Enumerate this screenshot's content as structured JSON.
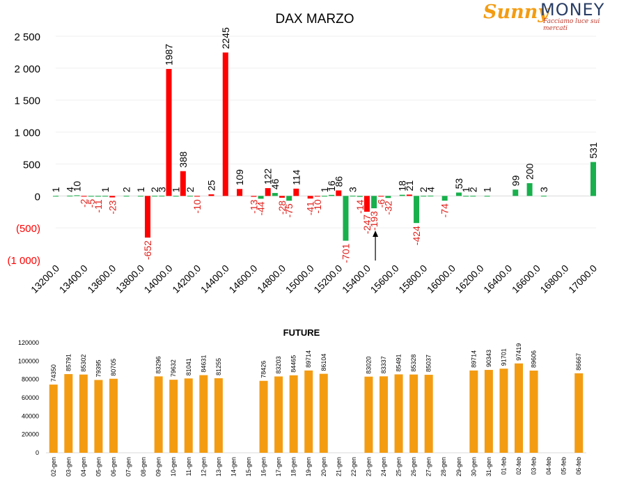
{
  "logo": {
    "brand_a": "Sunny",
    "brand_b": "MONEY",
    "tagline": "Facciamo luce sui mercati"
  },
  "colors": {
    "positive": "#18b04c",
    "negative": "#ff0000",
    "future_bar": "#f39c12",
    "axis_text": "#000000",
    "negative_label": "#e0201b"
  },
  "chart_data": [
    {
      "type": "bar",
      "title": "DAX MARZO",
      "xlabel": "",
      "ylabel": "",
      "ylim": [
        -1000,
        2500
      ],
      "y_ticks": [
        {
          "value": 2500,
          "label": "2 500"
        },
        {
          "value": 2000,
          "label": "2 000"
        },
        {
          "value": 1500,
          "label": "1 500"
        },
        {
          "value": 1000,
          "label": "1 000"
        },
        {
          "value": 500,
          "label": "500"
        },
        {
          "value": 0,
          "label": "0"
        },
        {
          "value": -500,
          "label": "(500)"
        },
        {
          "value": -1000,
          "label": "(1 000)"
        }
      ],
      "x_range": [
        13200,
        17000
      ],
      "x_ticks": [
        "13200.0",
        "13400.0",
        "13600.0",
        "13800.0",
        "14000.0",
        "14200.0",
        "14400.0",
        "14600.0",
        "14800.0",
        "15000.0",
        "15200.0",
        "15400.0",
        "15600.0",
        "15800.0",
        "16000.0",
        "16200.0",
        "16400.0",
        "16600.0",
        "16800.0",
        "17000.0"
      ],
      "grid": true,
      "annotation": "arrow pointing up at 15450 below the axis",
      "bars": [
        {
          "x": 13200,
          "value": 1,
          "color": "green"
        },
        {
          "x": 13300,
          "value": 4,
          "color": "green"
        },
        {
          "x": 13350,
          "value": 10,
          "color": "green"
        },
        {
          "x": 13400,
          "value": -2,
          "color": "red"
        },
        {
          "x": 13450,
          "value": -5,
          "color": "green"
        },
        {
          "x": 13500,
          "value": -11,
          "color": "green"
        },
        {
          "x": 13550,
          "value": 1,
          "color": "green"
        },
        {
          "x": 13600,
          "value": -23,
          "color": "red"
        },
        {
          "x": 13700,
          "value": 2,
          "color": "green"
        },
        {
          "x": 13800,
          "value": 1,
          "color": "green"
        },
        {
          "x": 13850,
          "value": -652,
          "color": "red"
        },
        {
          "x": 13900,
          "value": 2,
          "color": "green"
        },
        {
          "x": 13950,
          "value": 3,
          "color": "green"
        },
        {
          "x": 14000,
          "value": 1987,
          "color": "red"
        },
        {
          "x": 14050,
          "value": 1,
          "color": "green"
        },
        {
          "x": 14100,
          "value": 388,
          "color": "red"
        },
        {
          "x": 14150,
          "value": 2,
          "color": "green"
        },
        {
          "x": 14200,
          "value": -10,
          "color": "red"
        },
        {
          "x": 14300,
          "value": 25,
          "color": "red"
        },
        {
          "x": 14400,
          "value": 2245,
          "color": "red"
        },
        {
          "x": 14500,
          "value": 109,
          "color": "red"
        },
        {
          "x": 14600,
          "value": -13,
          "color": "red"
        },
        {
          "x": 14650,
          "value": -44,
          "color": "green"
        },
        {
          "x": 14700,
          "value": 122,
          "color": "red"
        },
        {
          "x": 14750,
          "value": 46,
          "color": "green"
        },
        {
          "x": 14800,
          "value": -28,
          "color": "red"
        },
        {
          "x": 14850,
          "value": -75,
          "color": "green"
        },
        {
          "x": 14900,
          "value": 114,
          "color": "red"
        },
        {
          "x": 15000,
          "value": -41,
          "color": "red"
        },
        {
          "x": 15050,
          "value": -10,
          "color": "red"
        },
        {
          "x": 15100,
          "value": 1,
          "color": "green"
        },
        {
          "x": 15150,
          "value": 16,
          "color": "green"
        },
        {
          "x": 15200,
          "value": 86,
          "color": "red"
        },
        {
          "x": 15250,
          "value": -701,
          "color": "green"
        },
        {
          "x": 15300,
          "value": 3,
          "color": "green"
        },
        {
          "x": 15350,
          "value": -14,
          "color": "green"
        },
        {
          "x": 15400,
          "value": -247,
          "color": "red"
        },
        {
          "x": 15450,
          "value": -193,
          "color": "green"
        },
        {
          "x": 15500,
          "value": -6,
          "color": "red"
        },
        {
          "x": 15550,
          "value": -32,
          "color": "green"
        },
        {
          "x": 15650,
          "value": 18,
          "color": "green"
        },
        {
          "x": 15700,
          "value": 21,
          "color": "red"
        },
        {
          "x": 15750,
          "value": -424,
          "color": "green"
        },
        {
          "x": 15800,
          "value": 2,
          "color": "green"
        },
        {
          "x": 15850,
          "value": 4,
          "color": "green"
        },
        {
          "x": 15950,
          "value": -74,
          "color": "green"
        },
        {
          "x": 16050,
          "value": 53,
          "color": "green"
        },
        {
          "x": 16100,
          "value": 1,
          "color": "green"
        },
        {
          "x": 16150,
          "value": 2,
          "color": "green"
        },
        {
          "x": 16250,
          "value": 1,
          "color": "green"
        },
        {
          "x": 16450,
          "value": 99,
          "color": "green"
        },
        {
          "x": 16550,
          "value": 200,
          "color": "green"
        },
        {
          "x": 16650,
          "value": 3,
          "color": "green"
        },
        {
          "x": 17000,
          "value": 531,
          "color": "green"
        }
      ]
    },
    {
      "type": "bar",
      "title": "FUTURE",
      "xlabel": "",
      "ylabel": "",
      "ylim": [
        0,
        120000
      ],
      "y_ticks": [
        "0",
        "20000",
        "40000",
        "60000",
        "80000",
        "100000",
        "120000"
      ],
      "categories": [
        "02-gen",
        "03-gen",
        "04-gen",
        "05-gen",
        "06-gen",
        "07-gen",
        "08-gen",
        "09-gen",
        "10-gen",
        "11-gen",
        "12-gen",
        "13-gen",
        "14-gen",
        "15-gen",
        "16-gen",
        "17-gen",
        "18-gen",
        "19-gen",
        "20-gen",
        "21-gen",
        "22-gen",
        "23-gen",
        "24-gen",
        "25-gen",
        "26-gen",
        "27-gen",
        "28-gen",
        "29-gen",
        "30-gen",
        "31-gen",
        "01-feb",
        "02-feb",
        "03-feb",
        "04-feb",
        "05-feb",
        "06-feb"
      ],
      "values": [
        74350,
        85791,
        85302,
        79395,
        80705,
        null,
        null,
        83296,
        79632,
        81041,
        84631,
        81255,
        null,
        null,
        78426,
        83203,
        84465,
        89714,
        86104,
        null,
        null,
        83020,
        83337,
        85491,
        85328,
        85037,
        null,
        null,
        89714,
        90343,
        91701,
        97419,
        89606,
        null,
        null,
        86667
      ],
      "value_labels": [
        "74350",
        "85791",
        "85302",
        "79395",
        "80705",
        "",
        "",
        "83296",
        "79632",
        "81041",
        "84631",
        "81255",
        "",
        "",
        "78426",
        "83203",
        "84465",
        "89714",
        "86104",
        "",
        "",
        "83020",
        "83337",
        "85491",
        "85328",
        "85037",
        "",
        "",
        "89714",
        "90343",
        "91701",
        "97419",
        "89606",
        "",
        "",
        "86667"
      ]
    }
  ]
}
